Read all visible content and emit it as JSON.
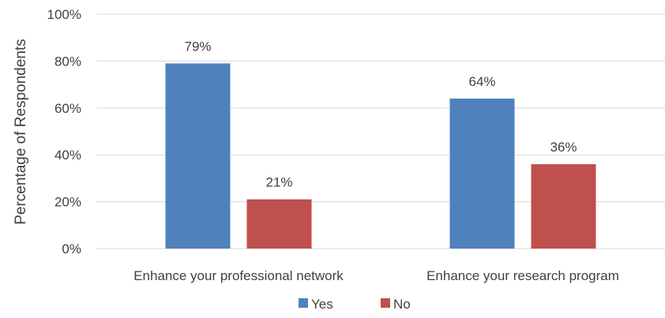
{
  "chart_data": {
    "type": "bar",
    "title": "",
    "xlabel": "",
    "ylabel": "Percentage of Respondents",
    "ylim": [
      0,
      100
    ],
    "yticks": [
      0,
      20,
      40,
      60,
      80,
      100
    ],
    "ytick_labels": [
      "0%",
      "20%",
      "40%",
      "60%",
      "80%",
      "100%"
    ],
    "grid": "horizontal",
    "legend": "bottom",
    "categories": [
      "Enhance your professional network",
      "Enhance your research program"
    ],
    "series": [
      {
        "name": "Yes",
        "color": "#4f81bd",
        "values": [
          79,
          64
        ],
        "labels": [
          "79%",
          "64%"
        ]
      },
      {
        "name": "No",
        "color": "#c0504d",
        "values": [
          21,
          36
        ],
        "labels": [
          "21%",
          "36%"
        ]
      }
    ]
  }
}
